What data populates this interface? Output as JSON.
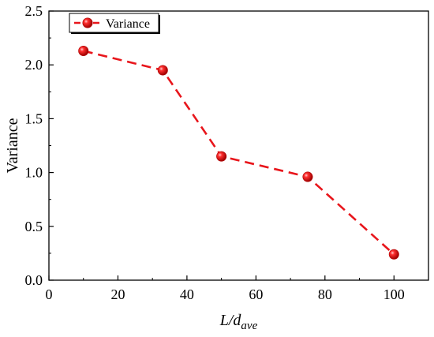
{
  "chart_data": {
    "type": "line",
    "title": "",
    "xlabel": {
      "main": "L/d",
      "subscript": "ave"
    },
    "ylabel": "Variance",
    "xlim": [
      0,
      110
    ],
    "ylim": [
      0.0,
      2.5
    ],
    "xticks": [
      0,
      20,
      40,
      60,
      80,
      100
    ],
    "yticks": [
      0.0,
      0.5,
      1.0,
      1.5,
      2.0,
      2.5
    ],
    "xtick_labels": [
      "0",
      "20",
      "40",
      "60",
      "80",
      "100"
    ],
    "ytick_labels": [
      "0.0",
      "0.5",
      "1.0",
      "1.5",
      "2.0",
      "2.5"
    ],
    "grid": false,
    "legend_position": "top-left",
    "series": [
      {
        "name": "Variance",
        "color": "#e8161c",
        "line_style": "dashed",
        "marker": "sphere",
        "x": [
          10,
          33,
          50,
          75,
          100
        ],
        "y": [
          2.13,
          1.95,
          1.15,
          0.96,
          0.24
        ]
      }
    ]
  }
}
